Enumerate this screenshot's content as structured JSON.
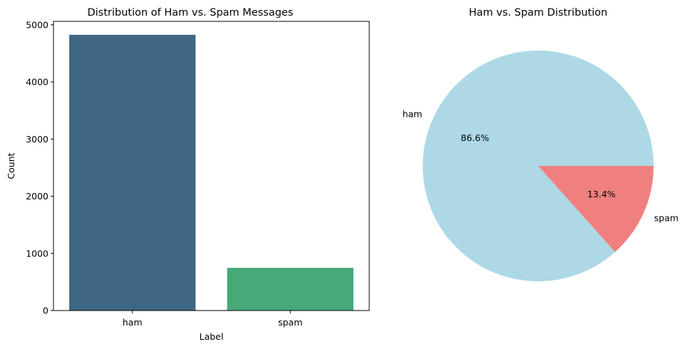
{
  "chart_data": [
    {
      "type": "bar",
      "title": "Distribution of Ham vs. Spam Messages",
      "xlabel": "Label",
      "ylabel": "Count",
      "categories": [
        "ham",
        "spam"
      ],
      "values": [
        4825,
        747
      ],
      "ylim": [
        0,
        5060
      ],
      "yticks": [
        0,
        1000,
        2000,
        3000,
        4000,
        5000
      ],
      "colors": [
        "#3e6783",
        "#47a878"
      ],
      "grid": false
    },
    {
      "type": "pie",
      "title": "Ham vs. Spam Distribution",
      "labels": [
        "ham",
        "spam"
      ],
      "values": [
        4825,
        747
      ],
      "percent_labels": [
        "86.6%",
        "13.4%"
      ],
      "colors": [
        "#add8e6",
        "#f08080"
      ]
    }
  ]
}
